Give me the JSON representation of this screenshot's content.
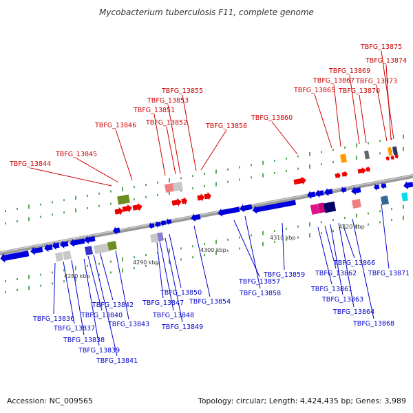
{
  "title": "Mycobacterium tuberculosis F11, complete genome",
  "footer": {
    "accession": "Accession: NC_009565",
    "summary": "Topology: circular; Length: 4,424,435 bp; Genes: 3,989"
  },
  "colors": {
    "forward_label": "#cc0000",
    "reverse_label": "#0000cc",
    "backbone": "#777777",
    "tick": "#228822",
    "forward_gene": "#ee0000",
    "reverse_gene": "#0000dd"
  },
  "scale_ticks": [
    "4280 kbp",
    "4290 kbp",
    "4300 kbp",
    "4310 kbp",
    "4320 kbp"
  ],
  "forward_genes": [
    "TBFG_13844",
    "TBFG_13845",
    "TBFG_13846",
    "TBFG_13851",
    "TBFG_13852",
    "TBFG_13853",
    "TBFG_13855",
    "TBFG_13856",
    "TBFG_13860",
    "TBFG_13865",
    "TBFG_13867",
    "TBFG_13869",
    "TBFG_13870",
    "TBFG_13873",
    "TBFG_13874",
    "TBFG_13875"
  ],
  "reverse_genes": [
    "TBFG_13836",
    "TBFG_13837",
    "TBFG_13838",
    "TBFG_13839",
    "TBFG_13840",
    "TBFG_13841",
    "TBFG_13842",
    "TBFG_13843",
    "TBFG_13847",
    "TBFG_13848",
    "TBFG_13849",
    "TBFG_13850",
    "TBFG_13854",
    "TBFG_13857",
    "TBFG_13858",
    "TBFG_13859",
    "TBFG_13861",
    "TBFG_13862",
    "TBFG_13863",
    "TBFG_13864",
    "TBFG_13866",
    "TBFG_13868",
    "TBFG_13871"
  ]
}
